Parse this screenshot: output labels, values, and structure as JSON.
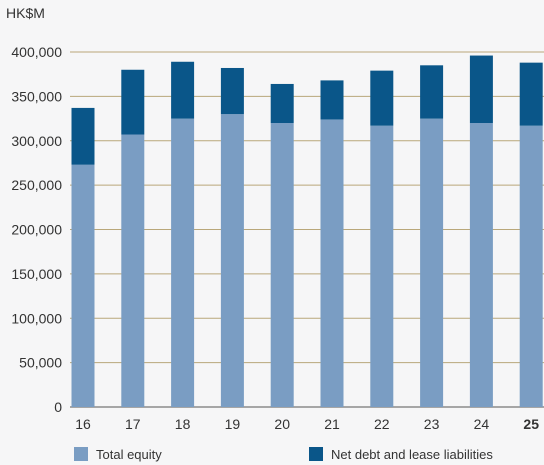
{
  "chart_data": {
    "type": "bar",
    "stacked": true,
    "unit_label": "HK$M",
    "categories": [
      "16",
      "17",
      "18",
      "19",
      "20",
      "21",
      "22",
      "23",
      "24",
      "25"
    ],
    "highlight_category": "25",
    "series": [
      {
        "name": "Total equity",
        "color": "#7a9dc3",
        "values": [
          273000,
          307000,
          325000,
          330000,
          320000,
          324000,
          317000,
          325000,
          320000,
          317000
        ]
      },
      {
        "name": "Net debt and lease liabilities",
        "color": "#0a5689",
        "values": [
          64000,
          73000,
          64000,
          52000,
          44000,
          44000,
          62000,
          60000,
          76000,
          71000
        ]
      }
    ],
    "ylim": [
      0,
      400000
    ],
    "yticks": [
      "0",
      "50,000",
      "100,000",
      "150,000",
      "200,000",
      "250,000",
      "300,000",
      "350,000",
      "400,000"
    ],
    "grid": true,
    "legend_position": "bottom"
  }
}
